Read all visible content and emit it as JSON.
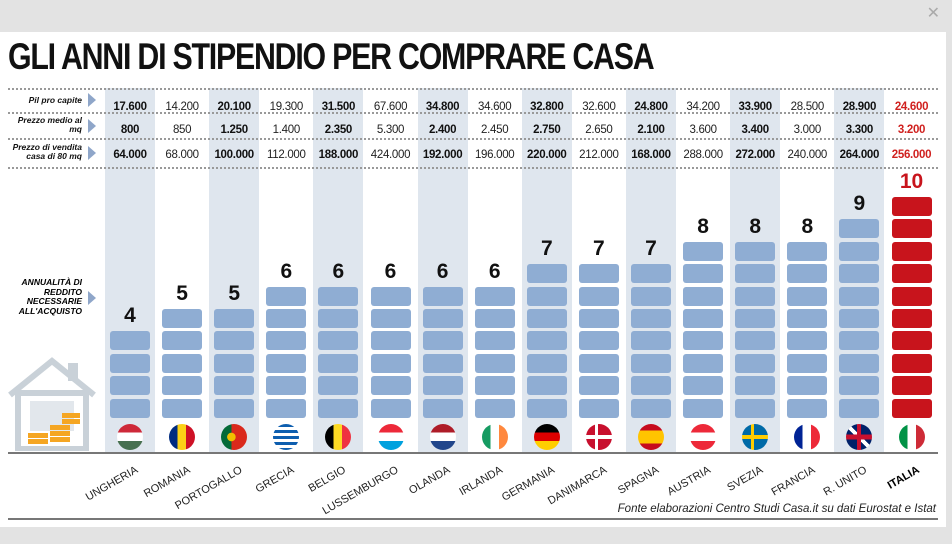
{
  "title": "GLI ANNI DI STIPENDIO PER COMPRARE CASA",
  "close_icon": "close-icon",
  "row_labels": {
    "pil": "Pil pro capite",
    "prezzo_mq": "Prezzo medio al mq",
    "prezzo_casa": "Prezzo di vendita casa di 80 mq",
    "annualita": "ANNUALITÀ DI REDDITO NECESSARIE ALL'ACQUISTO"
  },
  "source": "Fonte elaborazioni Centro Studi Casa.it su dati Eurostat e Istat",
  "colors": {
    "block": "#8fadd3",
    "italy": "#c8141c",
    "stripe": "#dfe6ee"
  },
  "chart_data": {
    "type": "bar",
    "title": "GLI ANNI DI STIPENDIO PER COMPRARE CASA",
    "ylabel": "ANNUALITÀ DI REDDITO NECESSARIE ALL'ACQUISTO",
    "categories": [
      "UNGHERIA",
      "ROMANIA",
      "PORTOGALLO",
      "GRECIA",
      "BELGIO",
      "LUSSEMBURGO",
      "OLANDA",
      "IRLANDA",
      "GERMANIA",
      "DANIMARCA",
      "SPAGNA",
      "AUSTRIA",
      "SVEZIA",
      "FRANCIA",
      "R. UNITO",
      "ITALIA"
    ],
    "values": [
      4,
      5,
      5,
      6,
      6,
      6,
      6,
      6,
      7,
      7,
      7,
      8,
      8,
      8,
      9,
      10
    ],
    "ylim": [
      0,
      10
    ],
    "table": {
      "pil": [
        "17.600",
        "14.200",
        "20.100",
        "19.300",
        "31.500",
        "67.600",
        "34.800",
        "34.600",
        "32.800",
        "32.600",
        "24.800",
        "34.200",
        "33.900",
        "28.500",
        "28.900",
        "24.600"
      ],
      "prezzo_mq": [
        "800",
        "850",
        "1.250",
        "1.400",
        "2.350",
        "5.300",
        "2.400",
        "2.450",
        "2.750",
        "2.650",
        "2.100",
        "3.600",
        "3.400",
        "3.000",
        "3.300",
        "3.200"
      ],
      "prezzo_casa": [
        "64.000",
        "68.000",
        "100.000",
        "112.000",
        "188.000",
        "424.000",
        "192.000",
        "196.000",
        "220.000",
        "212.000",
        "168.000",
        "288.000",
        "272.000",
        "240.000",
        "264.000",
        "256.000"
      ]
    }
  }
}
